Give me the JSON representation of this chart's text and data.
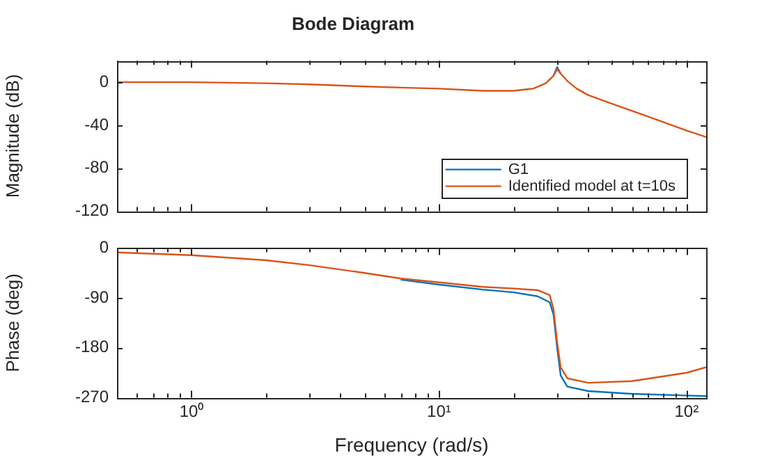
{
  "chart_data": [
    {
      "type": "line",
      "title": "Bode Diagram",
      "ylabel": "Magnitude (dB)",
      "log": "x",
      "x": [
        0.5,
        1,
        2,
        3,
        5,
        7,
        10,
        15,
        20,
        24,
        27,
        29,
        30,
        31,
        33,
        36,
        40,
        50,
        70,
        100,
        120
      ],
      "series": [
        {
          "name": "G1",
          "color": "#0072bd",
          "values": [
            null,
            null,
            null,
            null,
            null,
            null,
            null,
            null,
            null,
            null,
            null,
            6,
            14,
            8,
            null,
            null,
            null,
            null,
            null,
            null,
            null
          ]
        },
        {
          "name": "Identified model at t=10s",
          "color": "#d95319",
          "values": [
            0,
            0,
            -1,
            -2,
            -4,
            -5,
            -6,
            -8,
            -8,
            -6,
            -1,
            6,
            12,
            8,
            1,
            -6,
            -12,
            -20,
            -32,
            -45,
            -51
          ]
        }
      ],
      "xlim": [
        0.5,
        120
      ],
      "ylim": [
        -120,
        20
      ],
      "xticks": [
        {
          "value": 0.5,
          "label": null
        },
        {
          "value": 0.6,
          "label": null
        },
        {
          "value": 0.7,
          "label": null
        },
        {
          "value": 0.8,
          "label": null
        },
        {
          "value": 0.9,
          "label": null
        },
        {
          "value": 1,
          "label": null
        },
        {
          "value": 2,
          "label": null
        },
        {
          "value": 3,
          "label": null
        },
        {
          "value": 4,
          "label": null
        },
        {
          "value": 5,
          "label": null
        },
        {
          "value": 6,
          "label": null
        },
        {
          "value": 7,
          "label": null
        },
        {
          "value": 8,
          "label": null
        },
        {
          "value": 9,
          "label": null
        },
        {
          "value": 10,
          "label": null
        },
        {
          "value": 20,
          "label": null
        },
        {
          "value": 30,
          "label": null
        },
        {
          "value": 40,
          "label": null
        },
        {
          "value": 50,
          "label": null
        },
        {
          "value": 60,
          "label": null
        },
        {
          "value": 70,
          "label": null
        },
        {
          "value": 80,
          "label": null
        },
        {
          "value": 90,
          "label": null
        },
        {
          "value": 100,
          "label": null
        }
      ],
      "yticks": [
        -120,
        -80,
        -40,
        0
      ],
      "tick_labels": "y",
      "grid": false,
      "legend": "bottom right"
    },
    {
      "type": "line",
      "xlabel": "Frequency (rad/s)",
      "ylabel": "Phase (deg)",
      "log": "x",
      "x": [
        0.5,
        1,
        2,
        3,
        5,
        7,
        10,
        15,
        20,
        25,
        28,
        29,
        30,
        31,
        33,
        40,
        60,
        100,
        120
      ],
      "series": [
        {
          "color": "#0072bd",
          "values": [
            null,
            null,
            null,
            null,
            null,
            -57,
            -66,
            -75,
            -80,
            -87,
            -98,
            -120,
            -180,
            -230,
            -250,
            -258,
            -263,
            -266,
            -267
          ]
        },
        {
          "color": "#d95319",
          "values": [
            -8,
            -13,
            -22,
            -31,
            -45,
            -55,
            -62,
            -70,
            -73,
            -76,
            -85,
            -110,
            -170,
            -215,
            -235,
            -243,
            -240,
            -225,
            -215
          ]
        }
      ],
      "xlim": [
        0.5,
        120
      ],
      "ylim": [
        -270,
        0
      ],
      "xticks": [
        {
          "value": 0.5,
          "label": null
        },
        {
          "value": 0.6,
          "label": null
        },
        {
          "value": 0.7,
          "label": null
        },
        {
          "value": 0.8,
          "label": null
        },
        {
          "value": 0.9,
          "label": null
        },
        {
          "value": 1,
          "label": "10⁰"
        },
        {
          "value": 2,
          "label": null
        },
        {
          "value": 3,
          "label": null
        },
        {
          "value": 4,
          "label": null
        },
        {
          "value": 5,
          "label": null
        },
        {
          "value": 6,
          "label": null
        },
        {
          "value": 7,
          "label": null
        },
        {
          "value": 8,
          "label": null
        },
        {
          "value": 9,
          "label": null
        },
        {
          "value": 10,
          "label": "10¹"
        },
        {
          "value": 20,
          "label": null
        },
        {
          "value": 30,
          "label": null
        },
        {
          "value": 40,
          "label": null
        },
        {
          "value": 50,
          "label": null
        },
        {
          "value": 60,
          "label": null
        },
        {
          "value": 70,
          "label": null
        },
        {
          "value": 80,
          "label": null
        },
        {
          "value": 90,
          "label": null
        },
        {
          "value": 100,
          "label": "10²"
        }
      ],
      "yticks": [
        -270,
        -180,
        -90,
        0
      ],
      "grid": false,
      "legend": false
    }
  ]
}
